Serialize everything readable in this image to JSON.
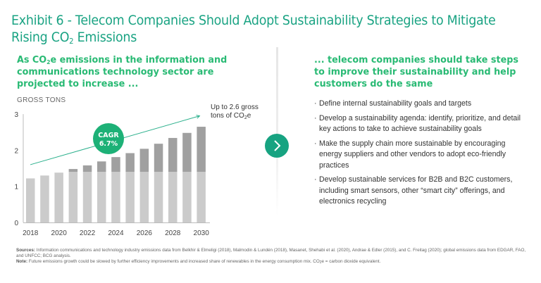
{
  "header": {
    "title_line1": "Exhibit 6 - Telecom Companies Should Adopt Sustainability Strategies to Mitigate",
    "title_line2_pre": "Rising CO",
    "title_line2_sub": "2",
    "title_line2_post": " Emissions"
  },
  "left_panel": {
    "heading_pre": "As CO",
    "heading_sub": "2",
    "heading_post": "e emissions in the information and communications technology sector are projected to increase ..."
  },
  "right_panel": {
    "heading": "... telecom companies should take steps to improve their sustainability and help customers do the same",
    "bullets": [
      "Define internal sustainability goals and targets",
      "Develop a sustainability agenda: identify, prioritize, and detail key actions to take to achieve sustainability goals",
      "Make the supply chain more sustainable by encouraging energy suppliers and other vendors to adopt eco-friendly practices",
      "Develop sustainable services for B2B and B2C customers, including smart sensors, other “smart city” offerings, and electronics recycling"
    ]
  },
  "navigation": {
    "next_icon": "chevron-right-icon"
  },
  "chart_data": {
    "type": "bar",
    "stacked": true,
    "ylabel": "GROSS TONS",
    "xlabel": "",
    "ylim": [
      0,
      3
    ],
    "yticks": [
      "0",
      "1",
      "2",
      "3"
    ],
    "categories": [
      "2018",
      "2019",
      "2020",
      "2021",
      "2022",
      "2023",
      "2024",
      "2025",
      "2026",
      "2027",
      "2028",
      "2029",
      "2030"
    ],
    "xtick_labels": [
      "2018",
      "2020",
      "2022",
      "2024",
      "2026",
      "2028",
      "2030"
    ],
    "series": [
      {
        "name": "base",
        "color": "#cbcbcb",
        "values": [
          1.22,
          1.3,
          1.38,
          1.4,
          1.4,
          1.4,
          1.4,
          1.4,
          1.4,
          1.4,
          1.4,
          1.4,
          1.4
        ]
      },
      {
        "name": "growth",
        "color": "#a0a0a0",
        "values": [
          0,
          0,
          0,
          0.08,
          0.18,
          0.29,
          0.41,
          0.52,
          0.64,
          0.78,
          0.94,
          1.08,
          1.25
        ]
      }
    ],
    "totals": [
      1.22,
      1.3,
      1.38,
      1.48,
      1.58,
      1.69,
      1.81,
      1.92,
      2.04,
      2.18,
      2.34,
      2.48,
      2.65
    ],
    "trend": {
      "from_year": "2018",
      "from_value": 1.6,
      "to_year": "2030",
      "to_value": 2.95,
      "color": "#2bb08c"
    },
    "cagr_badge": {
      "line1": "CAGR",
      "line2": "6.7%",
      "color": "#1db177"
    },
    "annotation": {
      "pre": "Up to 2.6 gross",
      "line2_pre": "tons of CO",
      "line2_sub": "2",
      "line2_post": "e"
    },
    "grid": false
  },
  "footer": {
    "sources_label": "Sources:",
    "sources_text": " Information communications and technology industry emissions data from Belkhir & Elmeligi (2018), Malmodin & Lundén (2018), Masanet, Shehabi et al. (2020), Andrae & Edler (2015), and C. Freitag (2020); global emissions data from EDGAR, FAO, and UNFCC; BCG analysis.",
    "note_label": "Note:",
    "note_text_pre": " Future emissions growth could be slowed by further efficiency improvements and increased share of renewables in the energy consumption mix. CO",
    "note_text_sub": "2",
    "note_text_post": "e = carbon dioxide equivalent."
  }
}
